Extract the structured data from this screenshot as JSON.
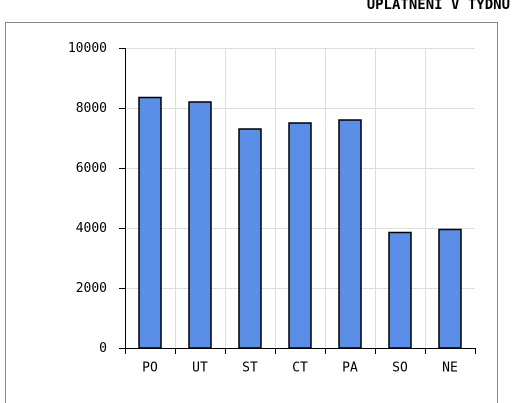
{
  "chart_data": {
    "type": "bar",
    "title": "UPLATNĚNÍ V TÝDNU",
    "categories": [
      "PO",
      "UT",
      "ST",
      "CT",
      "PA",
      "SO",
      "NE"
    ],
    "values": [
      8350,
      8200,
      7300,
      7500,
      7600,
      3850,
      3950
    ],
    "color": "#5b8ee6",
    "ylim": [
      0,
      10000
    ],
    "yticks": [
      0,
      2000,
      4000,
      6000,
      8000,
      10000
    ],
    "grid": true
  }
}
